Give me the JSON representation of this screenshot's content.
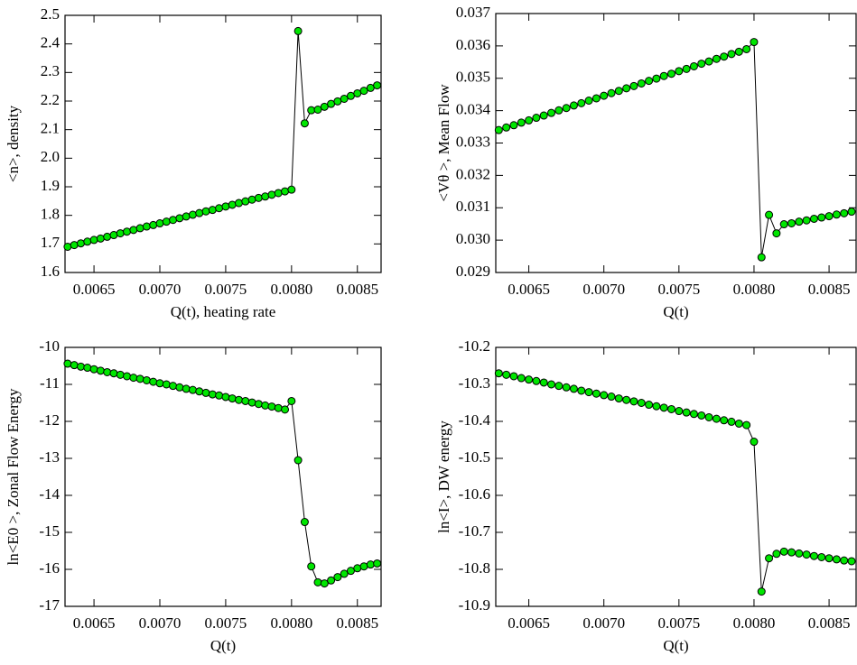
{
  "chart_data": [
    {
      "type": "line",
      "ylabel": "<n>, density",
      "xlabel": "Q(t), heating rate",
      "x": [
        0.0063,
        0.00635,
        0.0064,
        0.00645,
        0.0065,
        0.00655,
        0.0066,
        0.00665,
        0.0067,
        0.00675,
        0.0068,
        0.00685,
        0.0069,
        0.00695,
        0.007,
        0.00705,
        0.0071,
        0.00715,
        0.0072,
        0.00725,
        0.0073,
        0.00735,
        0.0074,
        0.00745,
        0.0075,
        0.00755,
        0.0076,
        0.00765,
        0.0077,
        0.00775,
        0.0078,
        0.00785,
        0.0079,
        0.00795,
        0.008,
        0.00805,
        0.0081,
        0.00815,
        0.0082,
        0.00825,
        0.0083,
        0.00835,
        0.0084,
        0.00845,
        0.0085,
        0.00855,
        0.0086,
        0.00865
      ],
      "values": [
        1.69,
        1.696,
        1.702,
        1.708,
        1.714,
        1.719,
        1.725,
        1.731,
        1.737,
        1.743,
        1.749,
        1.755,
        1.761,
        1.766,
        1.772,
        1.778,
        1.784,
        1.79,
        1.796,
        1.802,
        1.808,
        1.814,
        1.819,
        1.825,
        1.831,
        1.837,
        1.843,
        1.849,
        1.855,
        1.861,
        1.866,
        1.872,
        1.878,
        1.884,
        1.89,
        2.445,
        2.122,
        2.168,
        2.17,
        2.18,
        2.19,
        2.199,
        2.208,
        2.218,
        2.227,
        2.236,
        2.246,
        2.255
      ],
      "color": "#000000",
      "marker_color": "#00e600",
      "xlim": [
        0.00628,
        0.00868
      ],
      "xticks": [
        0.0065,
        {
          "value": 0.007,
          "label": "0.0070"
        },
        0.0075,
        {
          "value": 0.008,
          "label": "0.0080"
        },
        0.0085
      ],
      "ylim": [
        1.6,
        2.5
      ],
      "yticks": [
        1.6,
        1.7,
        1.8,
        1.9,
        {
          "value": 2,
          "label": "2.0"
        },
        2.1,
        2.2,
        2.3,
        2.4,
        2.5
      ]
    },
    {
      "type": "line",
      "ylabel": "<Vθ >,  Mean Flow",
      "xlabel": "Q(t)",
      "x": [
        0.0063,
        0.00635,
        0.0064,
        0.00645,
        0.0065,
        0.00655,
        0.0066,
        0.00665,
        0.0067,
        0.00675,
        0.0068,
        0.00685,
        0.0069,
        0.00695,
        0.007,
        0.00705,
        0.0071,
        0.00715,
        0.0072,
        0.00725,
        0.0073,
        0.00735,
        0.0074,
        0.00745,
        0.0075,
        0.00755,
        0.0076,
        0.00765,
        0.0077,
        0.00775,
        0.0078,
        0.00785,
        0.0079,
        0.00795,
        0.008,
        0.00805,
        0.0081,
        0.00815,
        0.0082,
        0.00825,
        0.0083,
        0.00835,
        0.0084,
        0.00845,
        0.0085,
        0.00855,
        0.0086,
        0.00865
      ],
      "values": [
        0.0334,
        0.03348,
        0.03355,
        0.03363,
        0.0337,
        0.03378,
        0.03385,
        0.03393,
        0.03401,
        0.03408,
        0.03416,
        0.03423,
        0.03431,
        0.03438,
        0.03446,
        0.03454,
        0.03461,
        0.03469,
        0.03476,
        0.03484,
        0.03492,
        0.03499,
        0.03507,
        0.03514,
        0.03522,
        0.03529,
        0.03537,
        0.03545,
        0.03552,
        0.0356,
        0.03567,
        0.03575,
        0.03582,
        0.0359,
        0.03612,
        0.02947,
        0.03078,
        0.03021,
        0.03049,
        0.03052,
        0.03057,
        0.03061,
        0.03066,
        0.0307,
        0.03074,
        0.03079,
        0.03083,
        0.03088
      ],
      "color": "#000000",
      "marker_color": "#00e600",
      "xlim": [
        0.00628,
        0.00868
      ],
      "xticks": [
        0.0065,
        {
          "value": 0.007,
          "label": "0.0070"
        },
        0.0075,
        {
          "value": 0.008,
          "label": "0.0080"
        },
        0.0085
      ],
      "ylim": [
        0.029,
        0.037
      ],
      "yticks": [
        0.029,
        {
          "value": 0.03,
          "label": "0.030"
        },
        0.031,
        0.032,
        0.033,
        0.034,
        0.035,
        0.036,
        0.037
      ]
    },
    {
      "type": "line",
      "ylabel": "ln<E0 >, Zonal Flow Energy",
      "xlabel": "Q(t)",
      "x": [
        0.0063,
        0.00635,
        0.0064,
        0.00645,
        0.0065,
        0.00655,
        0.0066,
        0.00665,
        0.0067,
        0.00675,
        0.0068,
        0.00685,
        0.0069,
        0.00695,
        0.007,
        0.00705,
        0.0071,
        0.00715,
        0.0072,
        0.00725,
        0.0073,
        0.00735,
        0.0074,
        0.00745,
        0.0075,
        0.00755,
        0.0076,
        0.00765,
        0.0077,
        0.00775,
        0.0078,
        0.00785,
        0.0079,
        0.00795,
        0.008,
        0.00805,
        0.0081,
        0.00815,
        0.0082,
        0.00825,
        0.0083,
        0.00835,
        0.0084,
        0.00845,
        0.0085,
        0.00855,
        0.0086,
        0.00865
      ],
      "values": [
        -10.44,
        -10.48,
        -10.52,
        -10.55,
        -10.59,
        -10.63,
        -10.67,
        -10.7,
        -10.74,
        -10.78,
        -10.82,
        -10.85,
        -10.89,
        -10.93,
        -10.97,
        -11.0,
        -11.04,
        -11.08,
        -11.12,
        -11.15,
        -11.19,
        -11.23,
        -11.27,
        -11.3,
        -11.34,
        -11.38,
        -11.42,
        -11.45,
        -11.49,
        -11.53,
        -11.57,
        -11.6,
        -11.64,
        -11.68,
        -11.45,
        -13.05,
        -14.72,
        -15.92,
        -16.35,
        -16.38,
        -16.3,
        -16.21,
        -16.12,
        -16.04,
        -15.97,
        -15.92,
        -15.87,
        -15.84
      ],
      "color": "#000000",
      "marker_color": "#00e600",
      "xlim": [
        0.00628,
        0.00868
      ],
      "xticks": [
        0.0065,
        {
          "value": 0.007,
          "label": "0.0070"
        },
        0.0075,
        {
          "value": 0.008,
          "label": "0.0080"
        },
        0.0085
      ],
      "ylim": [
        -17,
        -10
      ],
      "yticks": [
        -17,
        -16,
        -15,
        -14,
        -13,
        -12,
        -11,
        -10
      ]
    },
    {
      "type": "line",
      "ylabel": "ln<I>, DW  energy",
      "xlabel": "Q(t)",
      "x": [
        0.0063,
        0.00635,
        0.0064,
        0.00645,
        0.0065,
        0.00655,
        0.0066,
        0.00665,
        0.0067,
        0.00675,
        0.0068,
        0.00685,
        0.0069,
        0.00695,
        0.007,
        0.00705,
        0.0071,
        0.00715,
        0.0072,
        0.00725,
        0.0073,
        0.00735,
        0.0074,
        0.00745,
        0.0075,
        0.00755,
        0.0076,
        0.00765,
        0.0077,
        0.00775,
        0.0078,
        0.00785,
        0.0079,
        0.00795,
        0.008,
        0.00805,
        0.0081,
        0.00815,
        0.0082,
        0.00825,
        0.0083,
        0.00835,
        0.0084,
        0.00845,
        0.0085,
        0.00855,
        0.0086,
        0.00865
      ],
      "values": [
        -10.27,
        -10.274,
        -10.278,
        -10.283,
        -10.287,
        -10.291,
        -10.295,
        -10.3,
        -10.304,
        -10.308,
        -10.312,
        -10.317,
        -10.321,
        -10.325,
        -10.329,
        -10.333,
        -10.338,
        -10.342,
        -10.346,
        -10.35,
        -10.355,
        -10.359,
        -10.363,
        -10.367,
        -10.372,
        -10.376,
        -10.38,
        -10.384,
        -10.389,
        -10.393,
        -10.397,
        -10.401,
        -10.406,
        -10.41,
        -10.455,
        -10.86,
        -10.77,
        -10.758,
        -10.752,
        -10.754,
        -10.757,
        -10.76,
        -10.764,
        -10.767,
        -10.77,
        -10.773,
        -10.776,
        -10.778
      ],
      "color": "#000000",
      "marker_color": "#00e600",
      "xlim": [
        0.00628,
        0.00868
      ],
      "xticks": [
        0.0065,
        {
          "value": 0.007,
          "label": "0.0070"
        },
        0.0075,
        {
          "value": 0.008,
          "label": "0.0080"
        },
        0.0085
      ],
      "ylim": [
        -10.9,
        -10.2
      ],
      "yticks": [
        -10.9,
        -10.8,
        -10.7,
        -10.6,
        -10.5,
        -10.4,
        -10.3,
        -10.2
      ]
    }
  ]
}
